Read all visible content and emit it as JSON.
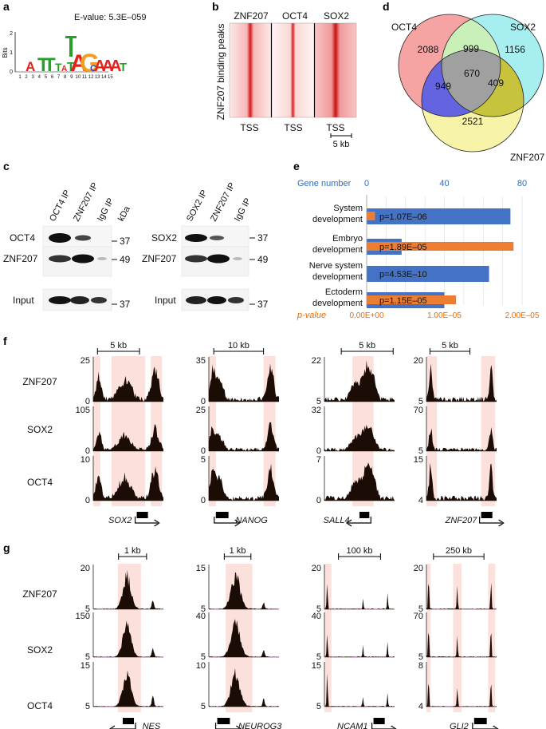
{
  "panels": {
    "a": "a",
    "b": "b",
    "c": "c",
    "d": "d",
    "e": "e",
    "f": "f",
    "g": "g"
  },
  "a": {
    "evalue": "E-value: 5.3E–059",
    "ylabel": "Bits",
    "yticks": [
      "0",
      "1",
      "2"
    ],
    "positions": [
      "1",
      "2",
      "3",
      "4",
      "5",
      "6",
      "7",
      "8",
      "9",
      "10",
      "11",
      "12",
      "13",
      "14",
      "15"
    ],
    "logo_letters": [
      "A",
      "T",
      "T",
      "T",
      "A",
      "T",
      "G",
      "C",
      "A",
      "A",
      "A",
      "T"
    ]
  },
  "b": {
    "columns": [
      "ZNF207",
      "OCT4",
      "SOX2"
    ],
    "ylabel": "ZNF207 binding peaks",
    "xlabels": [
      "TSS",
      "TSS",
      "TSS"
    ],
    "scale": "5 kb"
  },
  "c": {
    "left_cols": [
      "OCT4 IP",
      "ZNF207 IP",
      "IgG IP",
      "kDa"
    ],
    "left_rows": [
      "OCT4",
      "ZNF207",
      "Input"
    ],
    "left_kda": [
      "37",
      "49",
      "37"
    ],
    "right_cols": [
      "SOX2 IP",
      "ZNF207 IP",
      "IgG IP"
    ],
    "right_rows": [
      "SOX2",
      "ZNF207",
      "Input"
    ],
    "right_kda": [
      "37",
      "49",
      "37"
    ]
  },
  "d": {
    "sets": [
      "OCT4",
      "SOX2",
      "ZNF207"
    ],
    "counts": {
      "oct4_only": "2088",
      "oct4_sox2": "999",
      "sox2_only": "1156",
      "oct4_znf": "949",
      "all": "670",
      "sox2_znf": "409",
      "znf_only": "2521"
    },
    "colors": {
      "oct4": "#f5a3a3",
      "sox2": "#a6eef0",
      "znf": "#f7f4a9",
      "oct4_sox2": "#c8f0b8",
      "oct4_znf": "#6464e0",
      "sox2_znf": "#c8c33c",
      "all": "#a0a0a0"
    }
  },
  "chart_data": {
    "type": "bar",
    "categories": [
      "System development",
      "Embryo development",
      "Nerve system development",
      "Ectoderm development"
    ],
    "series": [
      {
        "name": "Gene number",
        "color": "#4472c4",
        "values": [
          74,
          18,
          63,
          40
        ]
      },
      {
        "name": "p-value",
        "color": "#ed7d31",
        "values": [
          1.07e-06,
          1.89e-05,
          4.53e-10,
          1.15e-05
        ]
      }
    ],
    "p_labels": [
      "p=1.07E–06",
      "p=1.89E–05",
      "p=4.53E–10",
      "p=1.15E–05"
    ],
    "top_axis": {
      "label": "Gene number",
      "ticks": [
        "0",
        "40",
        "80"
      ],
      "range": [
        0,
        80
      ]
    },
    "bottom_axis": {
      "label": "p-value",
      "ticks": [
        "0.00E+00",
        "1.00E–05",
        "2.00E–05"
      ],
      "range": [
        0,
        2e-05
      ]
    }
  },
  "f": {
    "rows": [
      "ZNF207",
      "SOX2",
      "OCT4"
    ],
    "tracks": [
      {
        "scale": "5 kb",
        "gene": "SOX2",
        "dir": "right",
        "ymax": [
          "25",
          "105",
          "10"
        ],
        "ymin": [
          "0",
          "0",
          "0"
        ]
      },
      {
        "scale": "10 kb",
        "gene": "NANOG",
        "dir": "right",
        "ymax": [
          "35",
          "25",
          "5"
        ],
        "ymin": [
          "0",
          "0",
          "0"
        ]
      },
      {
        "scale": "5 kb",
        "gene": "SALL4",
        "dir": "left",
        "ymax": [
          "22",
          "32",
          "7"
        ],
        "ymin": [
          "5",
          "0",
          "0"
        ]
      },
      {
        "scale": "5 kb",
        "gene": "ZNF207",
        "dir": "right",
        "ymax": [
          "20",
          "70",
          "15"
        ],
        "ymin": [
          "5",
          "5",
          "4"
        ]
      }
    ]
  },
  "g": {
    "rows": [
      "ZNF207",
      "SOX2",
      "OCT4"
    ],
    "tracks": [
      {
        "scale": "1 kb",
        "gene": "NES",
        "dir": "left",
        "ymax": [
          "20",
          "150",
          "15"
        ],
        "ymin": [
          "5",
          "5",
          "5"
        ]
      },
      {
        "scale": "1 kb",
        "gene": "NEUROG3",
        "dir": "right",
        "ymax": [
          "15",
          "40",
          "10"
        ],
        "ymin": [
          "5",
          "5",
          "5"
        ]
      },
      {
        "scale": "100 kb",
        "gene": "NCAM1",
        "dir": "right",
        "ymax": [
          "20",
          "40",
          "15"
        ],
        "ymin": [
          "5",
          "5",
          "5"
        ]
      },
      {
        "scale": "250 kb",
        "gene": "GLI2",
        "dir": "right",
        "ymax": [
          "20",
          "70",
          "8"
        ],
        "ymin": [
          "5",
          "5",
          "4"
        ]
      }
    ]
  }
}
